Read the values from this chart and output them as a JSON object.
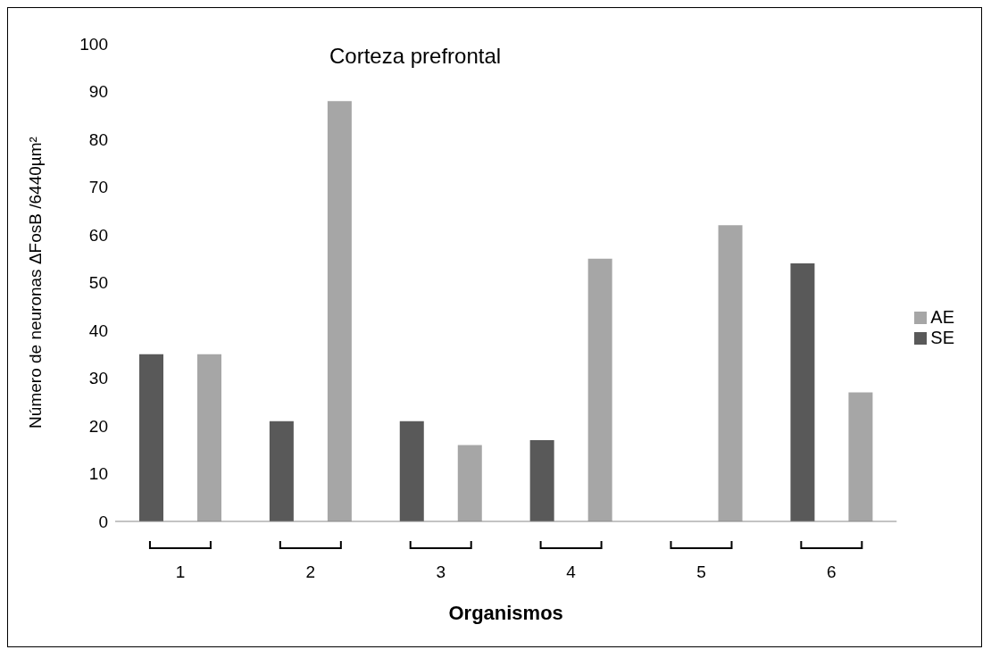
{
  "chart_data": {
    "type": "bar",
    "title": "Corteza prefrontal",
    "xlabel": "Organismos",
    "ylabel": "Número de neuronas ΔFosB /6440µm²",
    "categories": [
      "1",
      "2",
      "3",
      "4",
      "5",
      "6"
    ],
    "series": [
      {
        "name": "SE",
        "color": "#595959",
        "values": [
          35,
          21,
          21,
          17,
          0,
          54
        ]
      },
      {
        "name": "AE",
        "color": "#a6a6a6",
        "values": [
          35,
          88,
          16,
          55,
          62,
          27
        ]
      }
    ],
    "ylim": [
      0,
      100
    ],
    "yticks": [
      0,
      10,
      20,
      30,
      40,
      50,
      60,
      70,
      80,
      90,
      100
    ],
    "grid": false,
    "legend": "right"
  }
}
